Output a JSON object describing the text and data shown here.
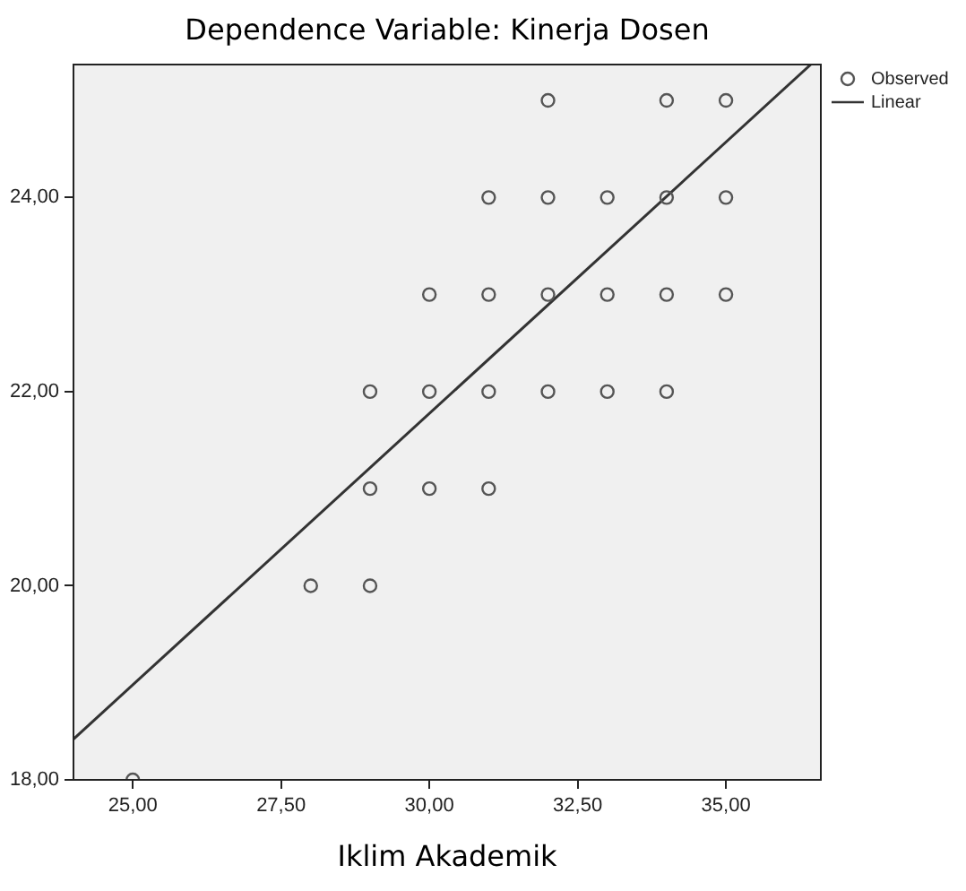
{
  "chart_data": {
    "type": "scatter",
    "title": "Dependence Variable: Kinerja Dosen",
    "xlabel": "Iklim Akademik",
    "xlim": [
      24,
      36.6
    ],
    "ylim": [
      18,
      25.37
    ],
    "xticks": [
      {
        "value": 25,
        "label": "25,00"
      },
      {
        "value": 27.5,
        "label": "27,50"
      },
      {
        "value": 30,
        "label": "30,00"
      },
      {
        "value": 32.5,
        "label": "32,50"
      },
      {
        "value": 35,
        "label": "35,00"
      }
    ],
    "yticks": [
      {
        "value": 18,
        "label": "18,00"
      },
      {
        "value": 20,
        "label": "20,00"
      },
      {
        "value": 22,
        "label": "22,00"
      },
      {
        "value": 24,
        "label": "24,00"
      }
    ],
    "grid": false,
    "legend": "top right",
    "series": [
      {
        "name": "Observed",
        "marker": "circle",
        "color": "#555555",
        "x": [
          32,
          34,
          35,
          31,
          32,
          33,
          34,
          35,
          30,
          31,
          32,
          33,
          34,
          35,
          29,
          30,
          31,
          32,
          33,
          34,
          29,
          30,
          31,
          28,
          29,
          25
        ],
        "values": [
          25,
          25,
          25,
          24,
          24,
          24,
          24,
          24,
          23,
          23,
          23,
          23,
          23,
          23,
          22,
          22,
          22,
          22,
          22,
          22,
          21,
          21,
          21,
          20,
          20,
          18
        ]
      },
      {
        "name": "Linear",
        "type": "line",
        "marker": "none",
        "color": "#333333",
        "x": [
          24,
          36.43
        ],
        "values": [
          18.42,
          25.37
        ]
      }
    ]
  }
}
